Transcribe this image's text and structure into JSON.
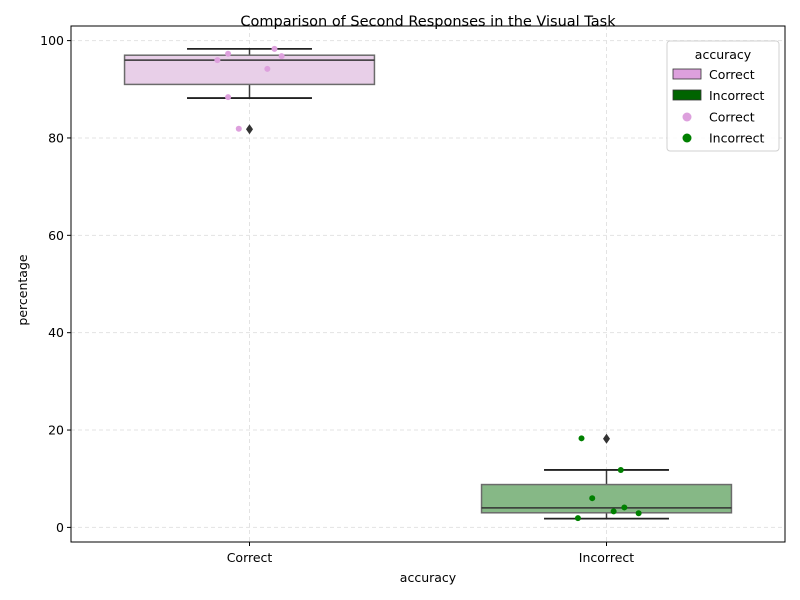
{
  "chart_data": {
    "type": "box",
    "title": "Comparison of Second Responses in the Visual Task",
    "xlabel": "accuracy",
    "ylabel": "percentage",
    "categories": [
      "Correct",
      "Incorrect"
    ],
    "ylim": [
      -3,
      103
    ],
    "yticks": [
      0,
      20,
      40,
      60,
      80,
      100
    ],
    "grid": true,
    "legend": {
      "title": "accuracy",
      "placement": "top-right",
      "box_entries": [
        "Correct",
        "Incorrect"
      ],
      "point_entries": [
        "Correct",
        "Incorrect"
      ]
    },
    "colors": {
      "correct_box": "#e8cfe8",
      "correct_point": "#dda0dd",
      "incorrect_box": "#86b886",
      "incorrect_point": "#008000",
      "legend_correct": "#dda0dd",
      "legend_incorrect": "#006400"
    },
    "boxes": [
      {
        "category": "Correct",
        "whisker_low": 88.2,
        "q1": 91.0,
        "median": 96.0,
        "q3": 97.0,
        "whisker_high": 98.3,
        "outliers": [
          81.8
        ]
      },
      {
        "category": "Incorrect",
        "whisker_low": 1.8,
        "q1": 3.0,
        "median": 4.0,
        "q3": 8.8,
        "whisker_high": 11.8,
        "outliers": [
          18.2
        ]
      }
    ],
    "points": [
      {
        "category": "Correct",
        "values": [
          96.0,
          97.3,
          98.3,
          96.8,
          94.2,
          88.4,
          81.9
        ],
        "jitter": [
          -0.09,
          -0.06,
          0.07,
          0.09,
          0.05,
          -0.06,
          -0.03
        ]
      },
      {
        "category": "Incorrect",
        "values": [
          18.3,
          11.8,
          6.0,
          4.1,
          3.3,
          2.9,
          1.9
        ],
        "jitter": [
          -0.07,
          0.04,
          -0.04,
          0.05,
          0.02,
          0.09,
          -0.08
        ]
      }
    ]
  }
}
